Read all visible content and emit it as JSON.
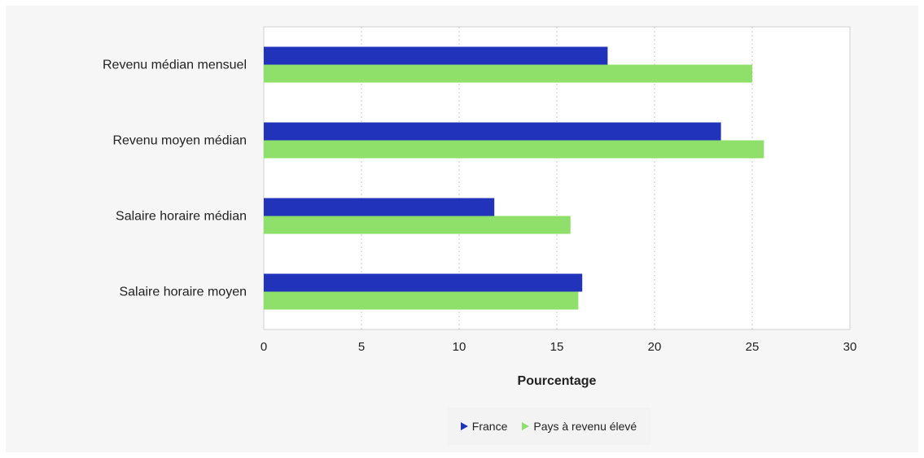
{
  "chart_data": {
    "type": "bar",
    "orientation": "horizontal",
    "categories": [
      "Revenu médian mensuel",
      "Revenu moyen médian",
      "Salaire horaire médian",
      "Salaire horaire moyen"
    ],
    "series": [
      {
        "name": "France",
        "values": [
          17.6,
          23.4,
          11.8,
          16.3
        ],
        "color": "#2233bb"
      },
      {
        "name": "Pays à revenu élevé",
        "values": [
          25.0,
          25.6,
          15.7,
          16.1
        ],
        "color": "#8fe06a"
      }
    ],
    "xlabel": "Pourcentage",
    "ylabel": "",
    "xlim": [
      0,
      30
    ],
    "xticks": [
      0,
      5,
      10,
      15,
      20,
      25,
      30
    ],
    "grid": "vertical dotted",
    "legend_position": "bottom"
  }
}
